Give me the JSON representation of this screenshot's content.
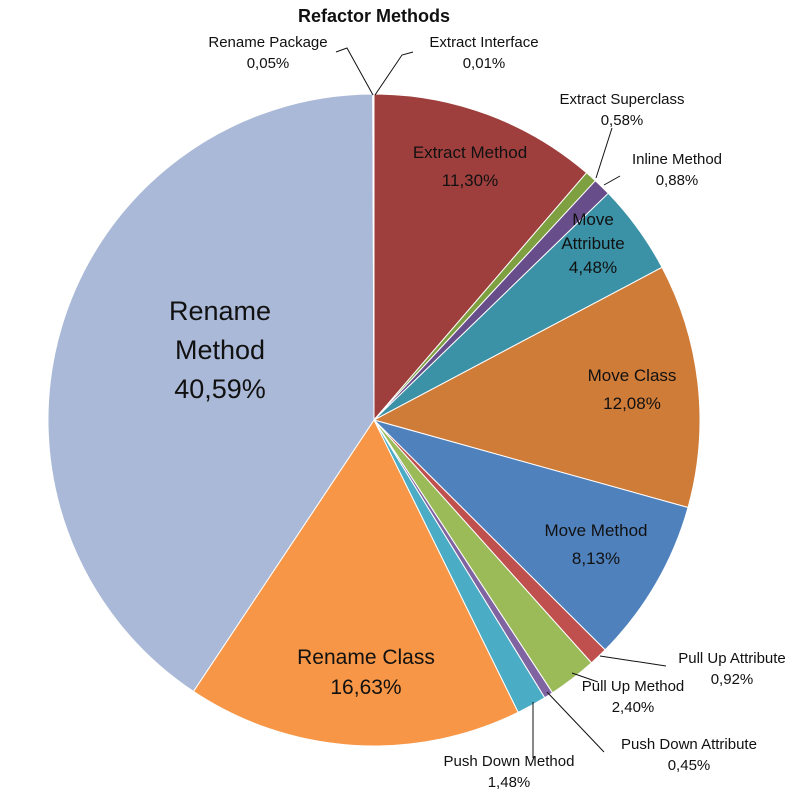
{
  "chart_data": {
    "type": "pie",
    "title": "Refactor Methods",
    "start_angle_deg": 0,
    "direction": "clockwise",
    "slices": [
      {
        "name": "Extract Method",
        "value": 11.3,
        "label": "11,30%",
        "color": "#9E3F3D"
      },
      {
        "name": "Extract Superclass",
        "value": 0.58,
        "label": "0,58%",
        "color": "#7EA040"
      },
      {
        "name": "Inline Method",
        "value": 0.88,
        "label": "0,88%",
        "color": "#684D8B"
      },
      {
        "name": "Move Attribute",
        "value": 4.48,
        "label": "4,48%",
        "color": "#3B91A5"
      },
      {
        "name": "Move Class",
        "value": 12.08,
        "label": "12,08%",
        "color": "#D07C39"
      },
      {
        "name": "Move Method",
        "value": 8.13,
        "label": "8,13%",
        "color": "#4F81BD"
      },
      {
        "name": "Pull Up Attribute",
        "value": 0.92,
        "label": "0,92%",
        "color": "#C0504D"
      },
      {
        "name": "Pull Up Method",
        "value": 2.4,
        "label": "2,40%",
        "color": "#9BBB59"
      },
      {
        "name": "Push Down Attribute",
        "value": 0.45,
        "label": "0,45%",
        "color": "#8064A2"
      },
      {
        "name": "Push Down Method",
        "value": 1.48,
        "label": "1,48%",
        "color": "#4BACC6"
      },
      {
        "name": "Rename Class",
        "value": 16.63,
        "label": "16,63%",
        "color": "#F79646"
      },
      {
        "name": "Rename Method",
        "value": 40.59,
        "label": "40,59%",
        "color": "#AAB9D7"
      },
      {
        "name": "Rename Package",
        "value": 0.05,
        "label": "0,05%",
        "color": "#8E3635"
      },
      {
        "name": "Extract Interface",
        "value": 0.01,
        "label": "0,01%",
        "color": "#6E8E37"
      }
    ]
  }
}
